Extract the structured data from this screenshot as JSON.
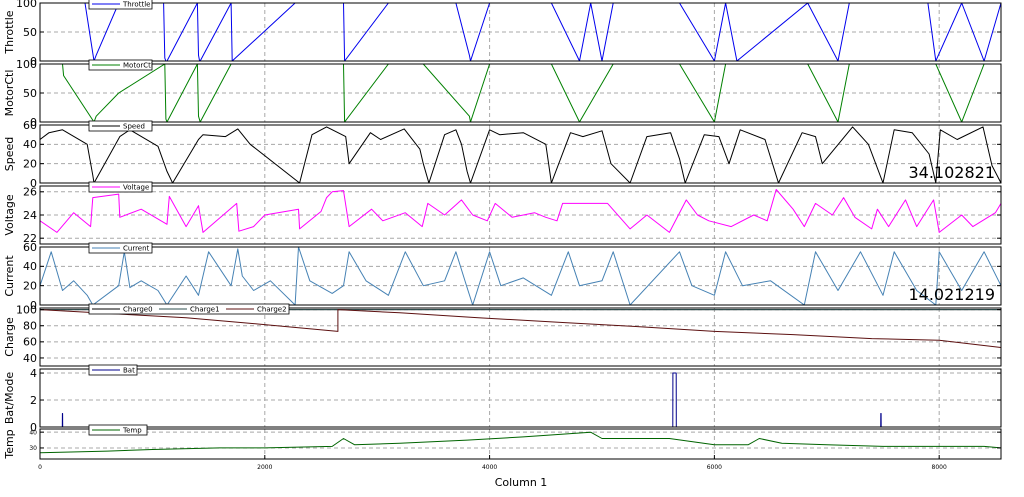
{
  "chart_data": {
    "type": "line",
    "xlabel": "Column 1",
    "xlim": [
      0,
      8550
    ],
    "x_ticks": [
      "0",
      "2000",
      "4000",
      "6000",
      "8000"
    ],
    "x_tick_values": [
      0,
      2000,
      4000,
      6000,
      8000
    ],
    "grid": true,
    "legend_placement": "top-left",
    "cycle_starts": [
      0,
      1130,
      2270,
      3410,
      4550,
      5690,
      6830,
      7970
    ],
    "panels": [
      {
        "ylabel": "Throttle",
        "ylim": [
          0,
          100
        ],
        "ticks": [
          0,
          50,
          100
        ],
        "series": [
          {
            "name": "Throttle",
            "color": "#0000ee"
          }
        ],
        "x": [
          0,
          400,
          480,
          500,
          700,
          1100,
          1110,
          1120,
          1130,
          1400,
          1410,
          1420,
          1425,
          1700,
          1710,
          2270,
          2700,
          2710,
          3100,
          3410,
          3700,
          3820,
          3830,
          4000,
          4550,
          4800,
          4900,
          5000,
          5100,
          5690,
          6000,
          6100,
          6200,
          6830,
          7100,
          7200,
          7900,
          7970,
          8200,
          8400,
          8550
        ],
        "values": [
          100,
          100,
          0,
          10,
          100,
          100,
          5,
          0,
          0,
          100,
          10,
          0,
          0,
          100,
          0,
          100,
          100,
          0,
          100,
          100,
          100,
          10,
          0,
          100,
          100,
          0,
          100,
          0,
          100,
          100,
          0,
          100,
          0,
          100,
          0,
          100,
          100,
          0,
          100,
          0,
          100
        ]
      },
      {
        "ylabel": "MotorCtl",
        "ylim": [
          0,
          100
        ],
        "ticks": [
          0,
          50,
          100
        ],
        "series": [
          {
            "name": "MotorCtl",
            "color": "#008000"
          }
        ],
        "x": [
          0,
          200,
          210,
          480,
          500,
          700,
          1110,
          1120,
          1130,
          1400,
          1410,
          1425,
          1700,
          2270,
          2700,
          2710,
          3100,
          3410,
          3820,
          3830,
          4000,
          4550,
          4800,
          5100,
          5690,
          6000,
          6100,
          6830,
          7100,
          7200,
          7970,
          8200,
          8400,
          8550
        ],
        "values": [
          100,
          100,
          80,
          0,
          10,
          50,
          100,
          5,
          0,
          100,
          10,
          0,
          100,
          100,
          100,
          0,
          100,
          100,
          10,
          0,
          100,
          100,
          0,
          100,
          100,
          0,
          100,
          100,
          0,
          100,
          100,
          0,
          100,
          100
        ]
      },
      {
        "ylabel": "Speed",
        "ylim": [
          0,
          60
        ],
        "ticks": [
          0,
          20,
          40,
          60
        ],
        "series": [
          {
            "name": "Speed",
            "color": "#000000"
          }
        ],
        "x": [
          0,
          80,
          200,
          420,
          470,
          480,
          710,
          800,
          1050,
          1130,
          1180,
          1410,
          1450,
          1650,
          1760,
          1870,
          2310,
          2420,
          2550,
          2720,
          2750,
          2940,
          3030,
          3240,
          3380,
          3410,
          3460,
          3600,
          3700,
          3750,
          3800,
          3830,
          4000,
          4090,
          4300,
          4500,
          4550,
          4720,
          4830,
          5000,
          5080,
          5250,
          5400,
          5610,
          5690,
          5740,
          5910,
          6040,
          6130,
          6230,
          6450,
          6570,
          6780,
          6900,
          6960,
          7230,
          7370,
          7500,
          7600,
          7760,
          7910,
          7970,
          8010,
          8160,
          8390,
          8470,
          8550
        ],
        "values": [
          45,
          52,
          55,
          40,
          8,
          0,
          48,
          55,
          38,
          12,
          0,
          45,
          50,
          48,
          56,
          40,
          0,
          50,
          58,
          48,
          20,
          52,
          45,
          56,
          35,
          20,
          0,
          50,
          55,
          40,
          12,
          0,
          55,
          50,
          52,
          40,
          0,
          52,
          48,
          54,
          20,
          0,
          48,
          52,
          25,
          0,
          50,
          48,
          20,
          55,
          45,
          0,
          52,
          48,
          20,
          58,
          40,
          0,
          55,
          52,
          30,
          0,
          55,
          45,
          58,
          18,
          0
        ]
      },
      {
        "ylabel": "Voltage",
        "ylim": [
          21.5,
          26.5
        ],
        "ticks": [
          22,
          24,
          26
        ],
        "series": [
          {
            "name": "Voltage",
            "color": "#ff00ff"
          }
        ],
        "x": [
          0,
          150,
          300,
          450,
          470,
          700,
          710,
          900,
          1130,
          1150,
          1300,
          1410,
          1450,
          1750,
          1770,
          1900,
          2000,
          2300,
          2310,
          2500,
          2550,
          2600,
          2700,
          2750,
          2950,
          3050,
          3250,
          3400,
          3450,
          3600,
          3750,
          3850,
          3980,
          4050,
          4200,
          4400,
          4500,
          4600,
          4650,
          4800,
          5050,
          5250,
          5400,
          5600,
          5750,
          5850,
          5950,
          6150,
          6350,
          6470,
          6550,
          6700,
          6800,
          6900,
          7050,
          7150,
          7250,
          7400,
          7450,
          7550,
          7700,
          7800,
          7950,
          8000,
          8200,
          8300,
          8500,
          8550
        ],
        "values": [
          23.5,
          22.5,
          24.2,
          23.0,
          25.5,
          25.8,
          23.8,
          24.5,
          23.2,
          25.6,
          23.0,
          24.8,
          22.5,
          25.0,
          22.6,
          23.0,
          24.0,
          24.5,
          22.8,
          24.3,
          25.5,
          26.0,
          26.1,
          23.0,
          24.5,
          23.5,
          24.2,
          23.0,
          25.0,
          24.0,
          25.3,
          24.0,
          23.5,
          25.0,
          23.8,
          24.2,
          23.8,
          23.5,
          25.0,
          25.0,
          25.0,
          22.8,
          24.0,
          22.5,
          25.3,
          24.0,
          23.5,
          23.0,
          24.0,
          23.5,
          26.2,
          24.5,
          23.0,
          25.0,
          24.0,
          25.5,
          23.8,
          22.8,
          24.5,
          23.0,
          25.3,
          23.0,
          25.3,
          22.5,
          24.0,
          23.0,
          24.2,
          25.0
        ]
      },
      {
        "ylabel": "Current",
        "ylim": [
          0,
          60
        ],
        "ticks": [
          0,
          20,
          40,
          60
        ],
        "series": [
          {
            "name": "Current",
            "color": "#4682b4"
          }
        ],
        "x": [
          0,
          100,
          200,
          300,
          420,
          470,
          700,
          750,
          800,
          900,
          1050,
          1130,
          1300,
          1410,
          1500,
          1700,
          1760,
          1800,
          1900,
          2050,
          2270,
          2300,
          2400,
          2600,
          2700,
          2750,
          2900,
          3100,
          3250,
          3410,
          3600,
          3700,
          3800,
          3850,
          4000,
          4100,
          4300,
          4550,
          4700,
          4800,
          5000,
          5100,
          5250,
          5690,
          5800,
          6000,
          6100,
          6250,
          6500,
          6800,
          6900,
          7100,
          7300,
          7500,
          7600,
          7800,
          7970,
          8000,
          8200,
          8400,
          8550
        ],
        "values": [
          20,
          55,
          15,
          25,
          10,
          0,
          20,
          55,
          18,
          25,
          15,
          0,
          30,
          10,
          55,
          20,
          58,
          30,
          15,
          25,
          0,
          60,
          25,
          12,
          20,
          55,
          25,
          10,
          55,
          20,
          25,
          55,
          18,
          0,
          55,
          20,
          28,
          10,
          55,
          20,
          25,
          55,
          0,
          55,
          20,
          10,
          55,
          20,
          25,
          0,
          55,
          15,
          55,
          10,
          55,
          15,
          0,
          55,
          15,
          55,
          20
        ]
      },
      {
        "ylabel": "Charge",
        "ylim": [
          30,
          102
        ],
        "ticks": [
          40,
          60,
          80,
          100
        ],
        "series": [
          {
            "name": "Charge0",
            "color": "#000000",
            "x": [
              0,
              8550
            ],
            "values": [
              100,
              100
            ]
          },
          {
            "name": "Charge1",
            "color": "#2f4f4f",
            "x": [
              0,
              8550
            ],
            "values": [
              100,
              100
            ]
          },
          {
            "name": "Charge2",
            "color": "#5c1010",
            "x": [
              0,
              500,
              1300,
              1950,
              2650,
              2650,
              3200,
              3900,
              4650,
              5300,
              6000,
              6700,
              7400,
              8000,
              8550
            ],
            "values": [
              100,
              96,
              90,
              82,
              73,
              100,
              96,
              90,
              84,
              79,
              73,
              69,
              64,
              62,
              53
            ]
          }
        ]
      },
      {
        "ylabel": "Bat/Mode",
        "ylim": [
          0,
          4.3
        ],
        "ticks": [
          0,
          2,
          4
        ],
        "series": [
          {
            "name": "Bat",
            "color": "#00008b"
          }
        ],
        "x": [
          0,
          198,
          199,
          201,
          202,
          5630,
          5631,
          5660,
          5661,
          7480,
          7481,
          7483,
          7484,
          8550
        ],
        "values": [
          0,
          0,
          1,
          1,
          0,
          0,
          4,
          4,
          0,
          0,
          1,
          1,
          0,
          0
        ]
      },
      {
        "ylabel": "Temp",
        "ylim": [
          23,
          42
        ],
        "ticks": [
          30,
          40
        ],
        "series": [
          {
            "name": "Temp",
            "color": "#006400"
          }
        ],
        "x": [
          0,
          600,
          1000,
          1600,
          2000,
          2600,
          2700,
          2800,
          3200,
          3800,
          4300,
          4900,
          5000,
          5200,
          5600,
          6000,
          6300,
          6400,
          6600,
          7000,
          7500,
          8000,
          8400,
          8550
        ],
        "values": [
          27,
          28,
          29,
          30,
          30,
          31,
          36,
          32,
          33,
          35,
          37,
          40,
          36,
          36,
          36,
          32,
          32,
          36,
          33,
          32,
          31,
          31,
          31,
          30
        ]
      }
    ],
    "annotations": [
      {
        "panel": 2,
        "text": "34.102821"
      },
      {
        "panel": 4,
        "text": "14.021219"
      }
    ]
  }
}
